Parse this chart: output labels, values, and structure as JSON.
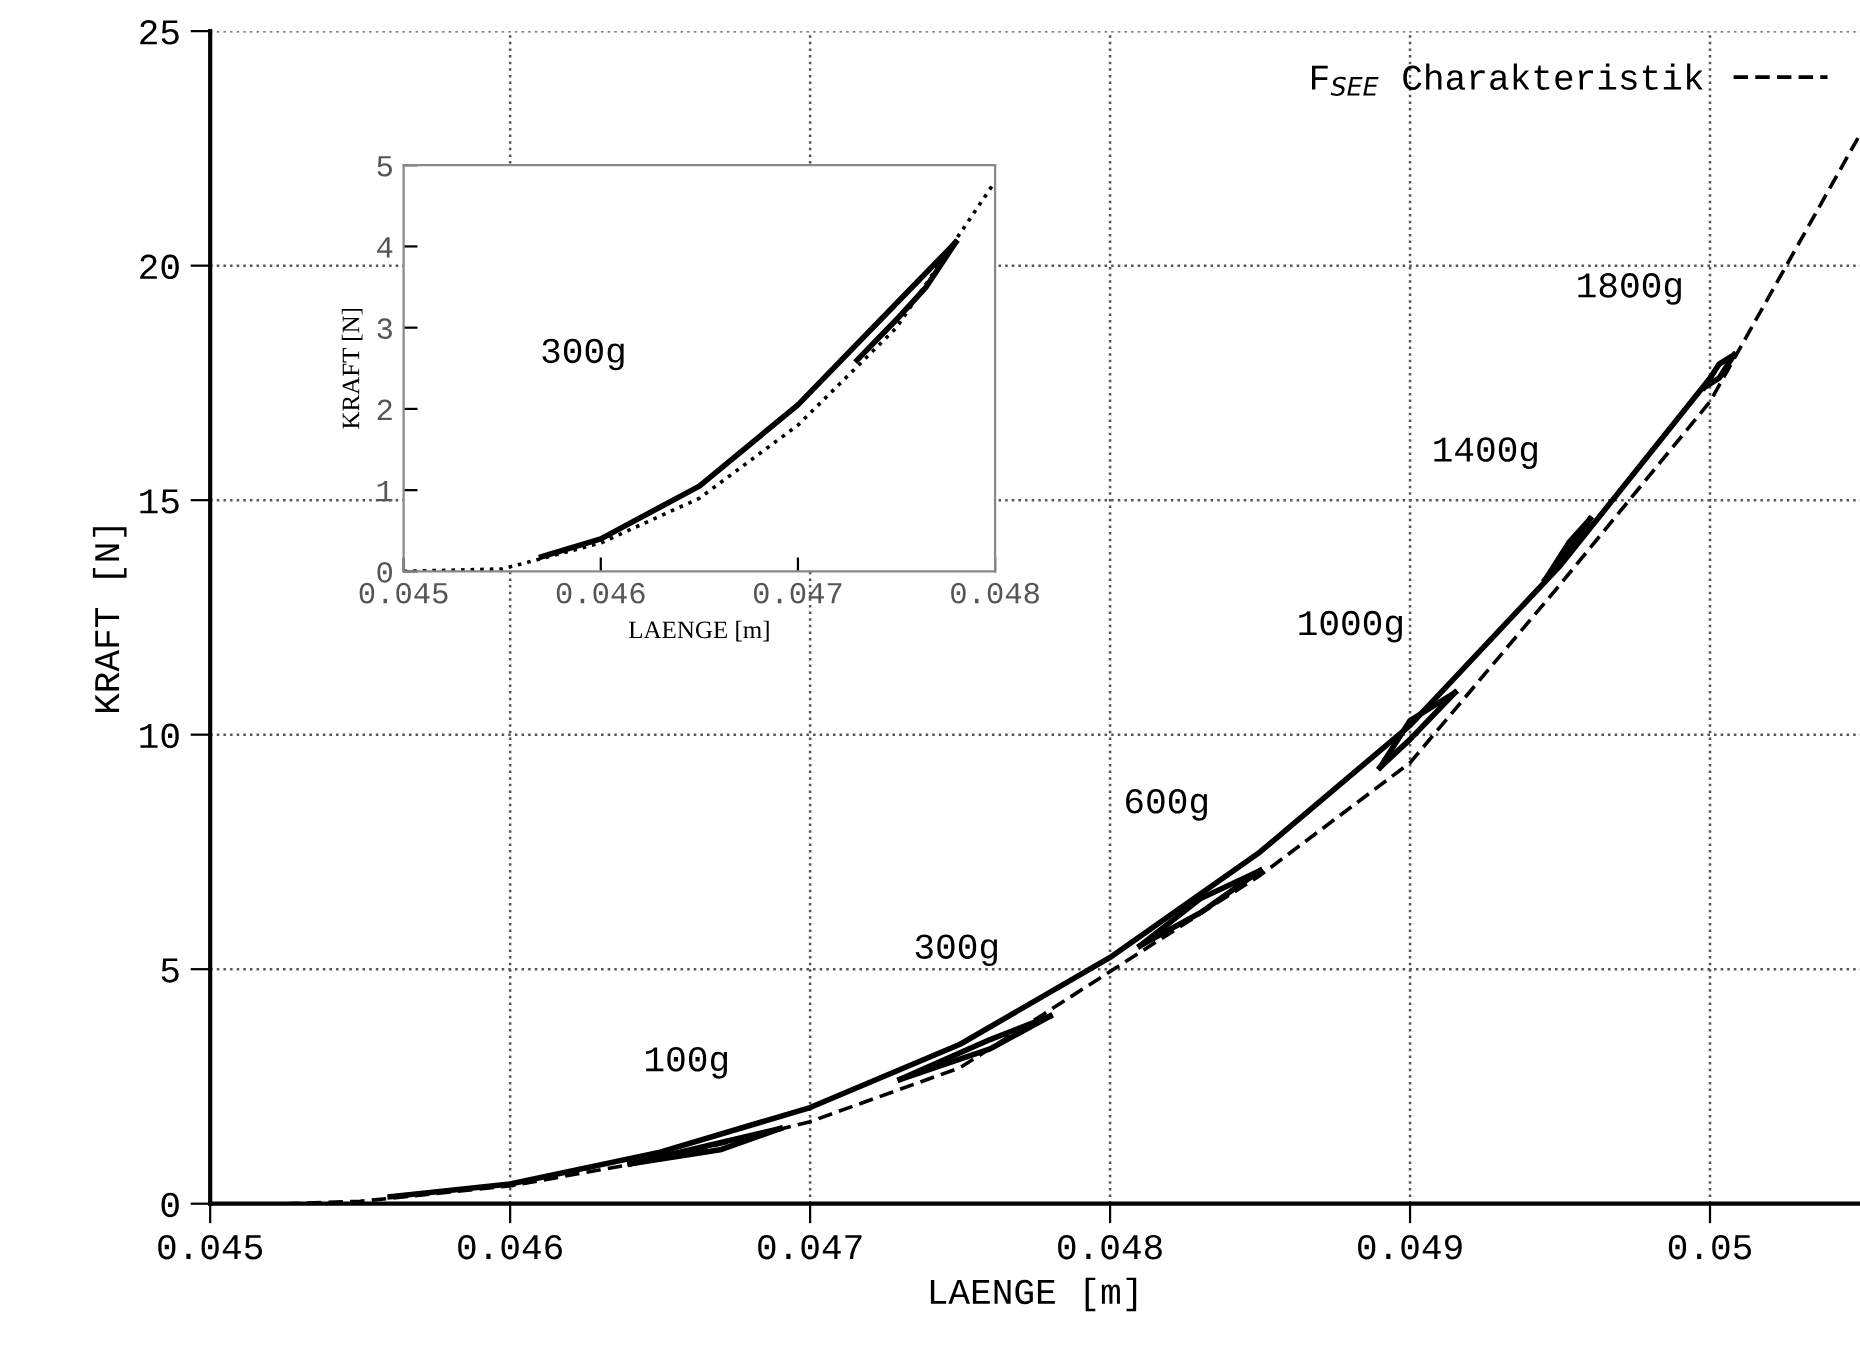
{
  "chart_data": [
    {
      "type": "line",
      "xlabel": "LAENGE [m]",
      "ylabel": "KRAFT [N]",
      "xlim": [
        0.045,
        0.0505
      ],
      "ylim": [
        0,
        25
      ],
      "xticks": [
        0.045,
        0.046,
        0.047,
        0.048,
        0.049,
        0.05
      ],
      "yticks": [
        0,
        5,
        10,
        15,
        20,
        25
      ],
      "grid": true,
      "legend": "top right",
      "marker": "none",
      "series": [
        {
          "name": "F$_{SEE}$ Charakteristik",
          "color": "#000000",
          "line_style": "dashed",
          "x": [
            0.04525,
            0.0455,
            0.046,
            0.0465,
            0.047,
            0.0475,
            0.048,
            0.0485,
            0.049,
            0.0495,
            0.05,
            0.0505
          ],
          "values": [
            0,
            0.05,
            0.38,
            0.95,
            1.75,
            2.9,
            4.95,
            7.0,
            9.4,
            13.2,
            17.1,
            22.8
          ]
        },
        {
          "color": "#000000",
          "line_style": "solid",
          "x": [
            0.0456,
            0.046,
            0.0465,
            0.047,
            0.0475,
            0.048,
            0.0485,
            0.049,
            0.0495,
            0.05
          ],
          "values": [
            0.15,
            0.42,
            1.1,
            2.05,
            3.4,
            5.25,
            7.5,
            10.2,
            13.6,
            17.6
          ]
        },
        {
          "color": "#000000",
          "line_style": "solid",
          "x": [
            0.0464,
            0.0467,
            0.0469
          ],
          "values": [
            0.85,
            1.3,
            1.6
          ]
        },
        {
          "color": "#000000",
          "line_style": "solid",
          "x": [
            0.0464,
            0.0467,
            0.0469
          ],
          "values": [
            0.85,
            1.15,
            1.6
          ]
        },
        {
          "color": "#000000",
          "line_style": "solid",
          "x": [
            0.0473,
            0.0476,
            0.0478
          ],
          "values": [
            2.65,
            3.5,
            4.0
          ]
        },
        {
          "color": "#000000",
          "line_style": "solid",
          "x": [
            0.0473,
            0.0476,
            0.0478
          ],
          "values": [
            2.65,
            3.3,
            4.0
          ]
        },
        {
          "color": "#000000",
          "line_style": "solid",
          "x": [
            0.0481,
            0.0483,
            0.0485
          ],
          "values": [
            5.5,
            6.5,
            7.1
          ]
        },
        {
          "color": "#000000",
          "line_style": "solid",
          "x": [
            0.0481,
            0.0483,
            0.0485
          ],
          "values": [
            5.5,
            6.2,
            7.1
          ]
        },
        {
          "color": "#000000",
          "line_style": "solid",
          "x": [
            0.0489,
            0.049,
            0.04915
          ],
          "values": [
            9.3,
            10.3,
            10.9
          ]
        },
        {
          "color": "#000000",
          "line_style": "solid",
          "x": [
            0.0489,
            0.049,
            0.04915
          ],
          "values": [
            9.3,
            9.9,
            10.9
          ]
        },
        {
          "color": "#000000",
          "line_style": "solid",
          "x": [
            0.04945,
            0.04953,
            0.0496
          ],
          "values": [
            13.3,
            14.1,
            14.6
          ]
        },
        {
          "color": "#000000",
          "line_style": "solid",
          "x": [
            0.04945,
            0.04953,
            0.0496
          ],
          "values": [
            13.3,
            13.9,
            14.6
          ]
        },
        {
          "color": "#000000",
          "line_style": "solid",
          "x": [
            0.04998,
            0.05003,
            0.05008
          ],
          "values": [
            17.4,
            17.9,
            18.1
          ]
        },
        {
          "color": "#000000",
          "line_style": "solid",
          "x": [
            0.04998,
            0.05003,
            0.05008
          ],
          "values": [
            17.4,
            17.6,
            18.1
          ]
        }
      ],
      "annotations": [
        "100g",
        "300g",
        "600g",
        "1000g",
        "1400g",
        "1800g"
      ]
    },
    {
      "type": "line",
      "xlabel": "LAENGE [m]",
      "ylabel": "KRAFT [N]",
      "xlim": [
        0.045,
        0.048
      ],
      "ylim": [
        0,
        5
      ],
      "xticks": [
        0.045,
        0.046,
        0.047,
        0.048
      ],
      "yticks": [
        0,
        1,
        2,
        3,
        4,
        5
      ],
      "marker": "none",
      "series": [
        {
          "color": "#000000",
          "line_style": "dotted",
          "x": [
            0.045,
            0.0455,
            0.046,
            0.0465,
            0.047,
            0.0475,
            0.048
          ],
          "values": [
            0,
            0.03,
            0.35,
            0.9,
            1.8,
            3.0,
            4.8
          ]
        },
        {
          "color": "#000000",
          "line_style": "solid",
          "x": [
            0.0457,
            0.046,
            0.0465,
            0.047,
            0.0475,
            0.0478
          ],
          "values": [
            0.18,
            0.4,
            1.05,
            2.05,
            3.3,
            4.05
          ]
        },
        {
          "color": "#000000",
          "line_style": "solid",
          "x": [
            0.0473,
            0.0475,
            0.04765,
            0.0478
          ],
          "values": [
            2.6,
            3.1,
            3.5,
            4.05
          ]
        }
      ],
      "annotations": [
        "300g"
      ]
    }
  ]
}
